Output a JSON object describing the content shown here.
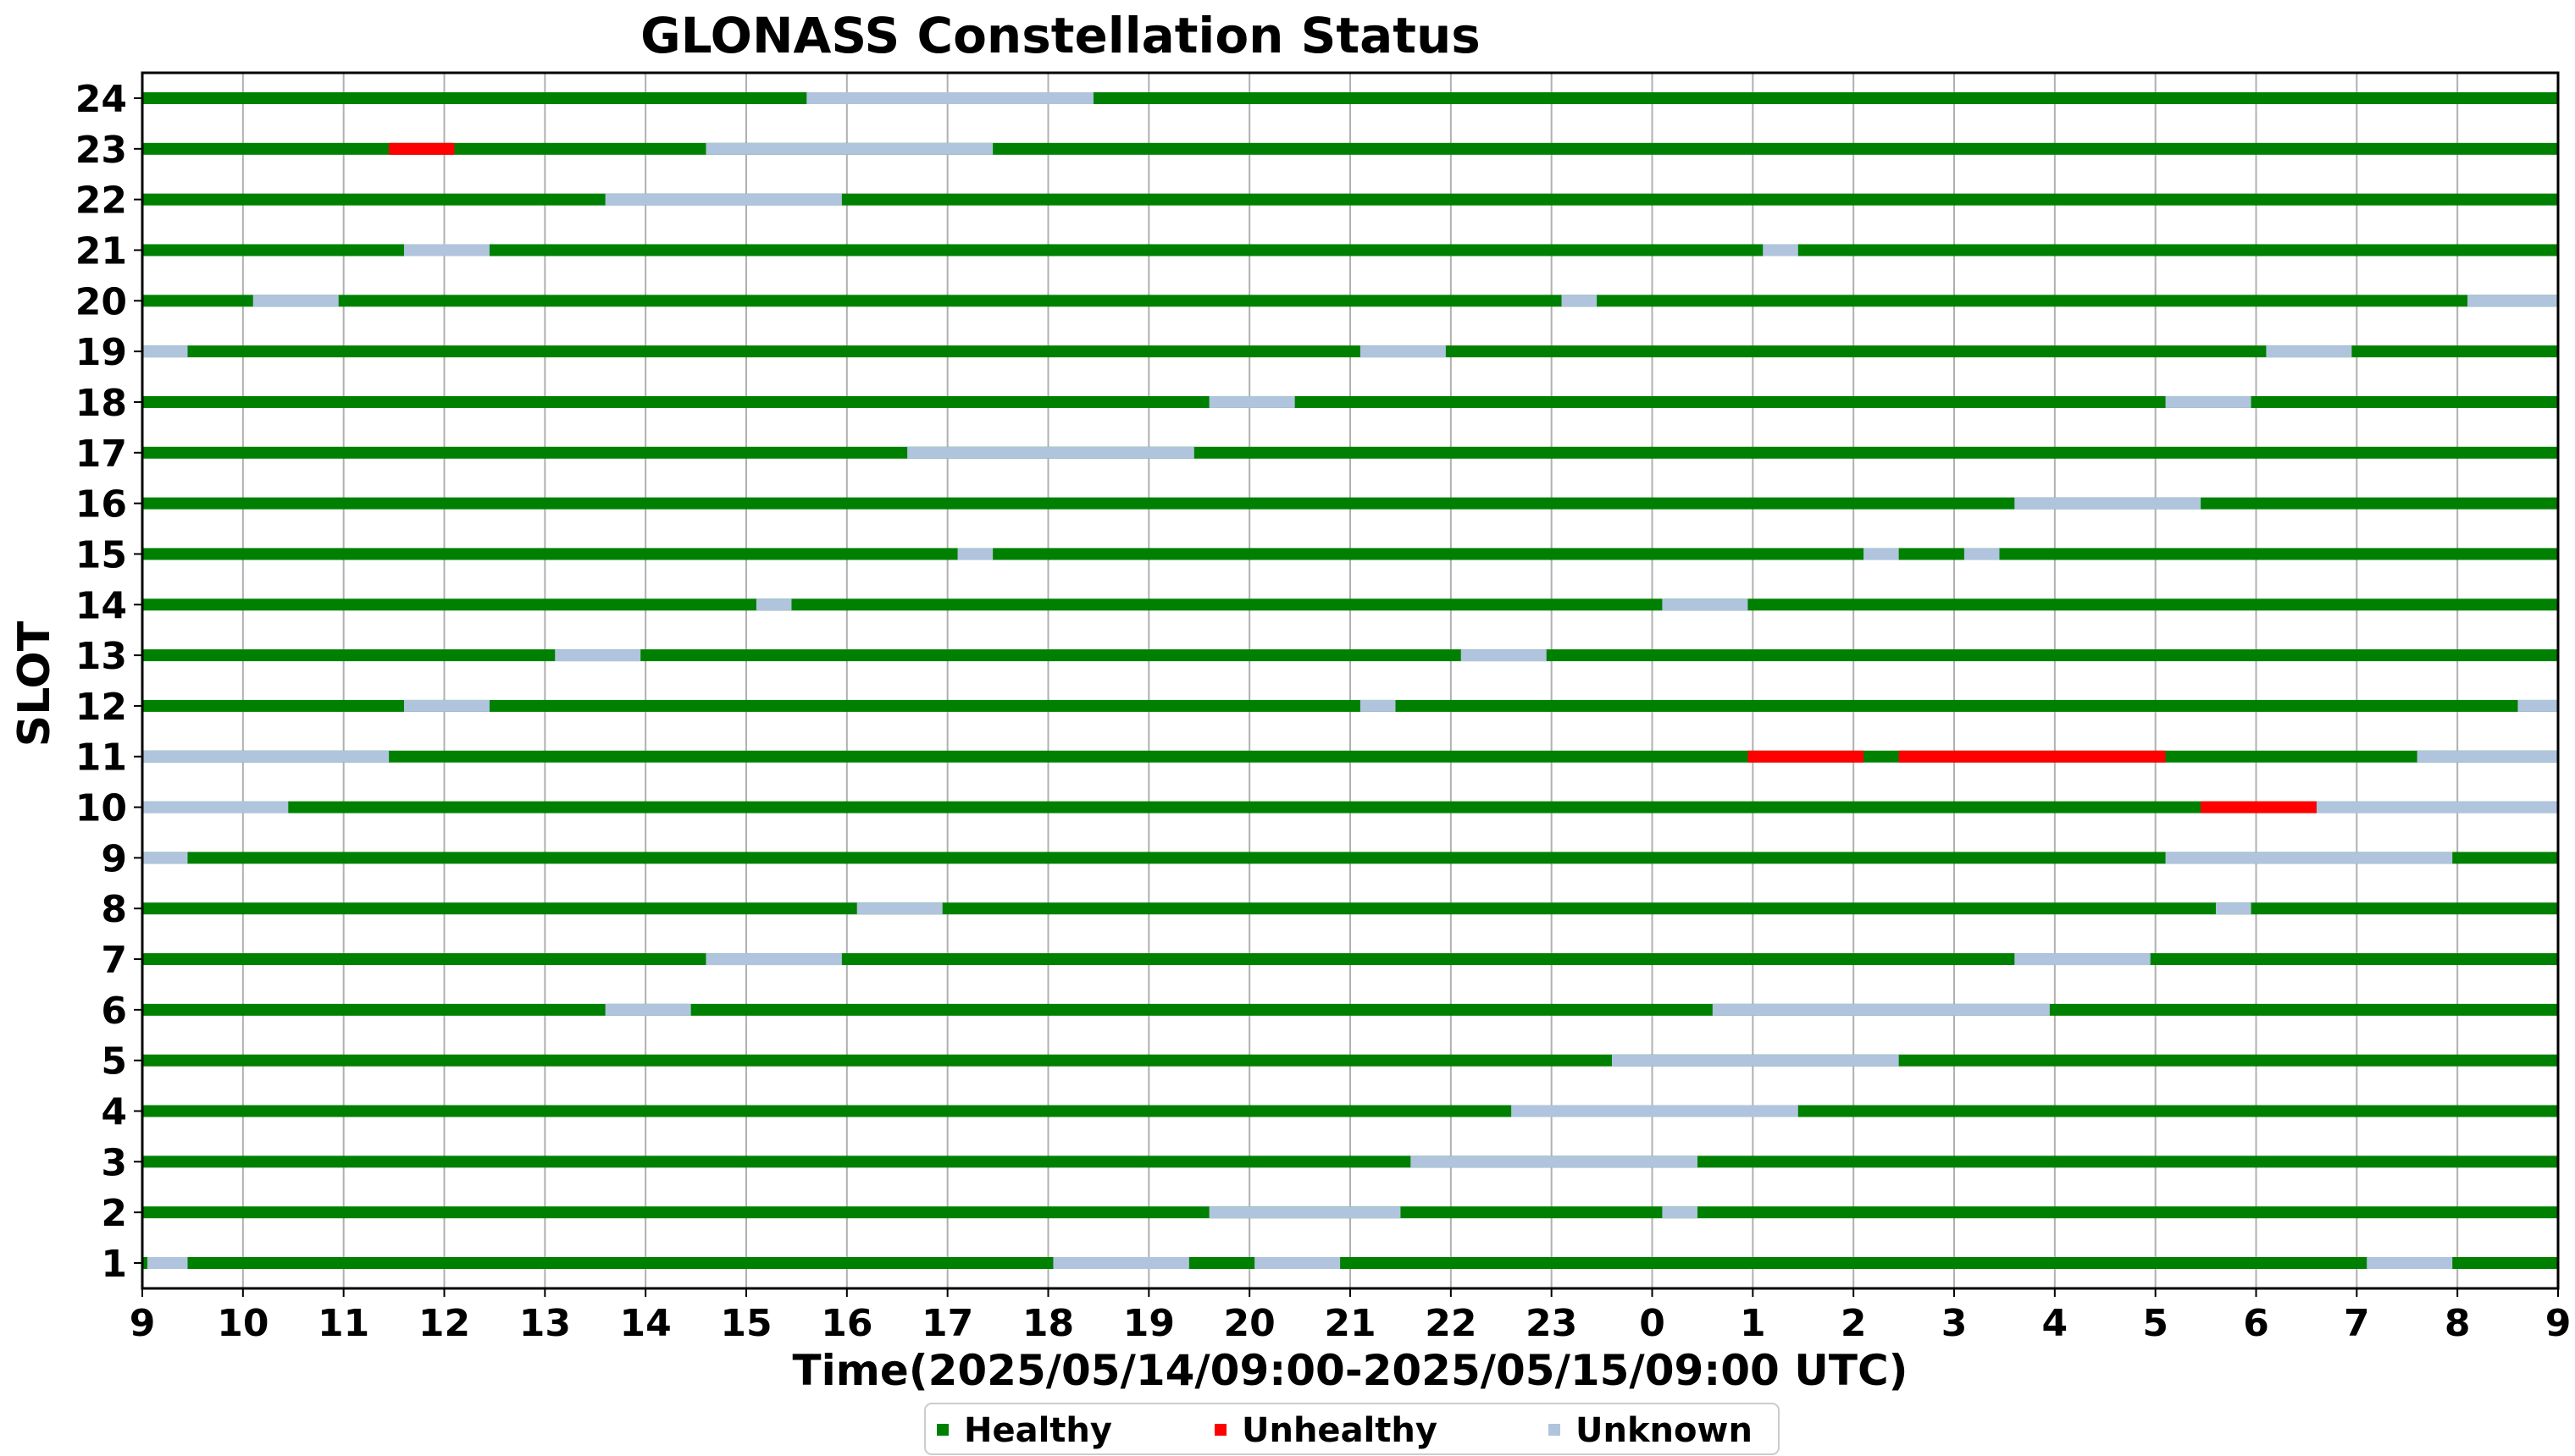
{
  "chart_data": {
    "type": "timeline",
    "title": "GLONASS Constellation Status",
    "xlabel": "Time(2025/05/14/09:00-2025/05/15/09:00 UTC)",
    "ylabel": "SLOT",
    "x_tick_labels": [
      "9",
      "10",
      "11",
      "12",
      "13",
      "14",
      "15",
      "16",
      "17",
      "18",
      "19",
      "20",
      "21",
      "22",
      "23",
      "0",
      "1",
      "2",
      "3",
      "4",
      "5",
      "6",
      "7",
      "8",
      "9"
    ],
    "y_categories": [
      "1",
      "2",
      "3",
      "4",
      "5",
      "6",
      "7",
      "8",
      "9",
      "10",
      "11",
      "12",
      "13",
      "14",
      "15",
      "16",
      "17",
      "18",
      "19",
      "20",
      "21",
      "22",
      "23",
      "24"
    ],
    "x_range_hours": [
      0,
      24
    ],
    "grid": "x",
    "legend_position": "bottom-center",
    "status_colors": {
      "Healthy": "#008000",
      "Unhealthy": "#ff0000",
      "Unknown": "#b0c4de"
    },
    "legend": [
      {
        "label": "Healthy",
        "status": "Healthy"
      },
      {
        "label": "Unhealthy",
        "status": "Unhealthy"
      },
      {
        "label": "Unknown",
        "status": "Unknown"
      }
    ],
    "slots": [
      {
        "slot": "1",
        "unknown": [
          [
            0.05,
            0.45
          ],
          [
            9.05,
            10.4
          ],
          [
            11.05,
            11.9
          ],
          [
            22.1,
            22.95
          ]
        ]
      },
      {
        "slot": "2",
        "unknown": [
          [
            10.6,
            12.5
          ],
          [
            15.1,
            15.45
          ]
        ]
      },
      {
        "slot": "3",
        "unknown": [
          [
            12.6,
            15.45
          ]
        ]
      },
      {
        "slot": "4",
        "unknown": [
          [
            13.6,
            16.45
          ]
        ]
      },
      {
        "slot": "5",
        "unknown": [
          [
            14.6,
            17.45
          ]
        ]
      },
      {
        "slot": "6",
        "unknown": [
          [
            4.6,
            5.45
          ],
          [
            15.6,
            18.95
          ]
        ]
      },
      {
        "slot": "7",
        "unknown": [
          [
            5.6,
            6.95
          ],
          [
            18.6,
            19.95
          ]
        ]
      },
      {
        "slot": "8",
        "unknown": [
          [
            7.1,
            7.95
          ],
          [
            20.6,
            20.95
          ]
        ]
      },
      {
        "slot": "9",
        "unknown": [
          [
            0,
            0.45
          ],
          [
            20.1,
            22.95
          ]
        ]
      },
      {
        "slot": "10",
        "unknown": [
          [
            0,
            1.45
          ],
          [
            21.6,
            24
          ]
        ],
        "unhealthy": [
          [
            20.45,
            21.6
          ]
        ]
      },
      {
        "slot": "11",
        "unknown": [
          [
            0,
            2.45
          ],
          [
            22.6,
            24
          ]
        ],
        "unhealthy": [
          [
            15.95,
            17.1
          ],
          [
            17.45,
            20.1
          ]
        ]
      },
      {
        "slot": "12",
        "unknown": [
          [
            2.6,
            3.45
          ],
          [
            12.1,
            12.45
          ],
          [
            23.6,
            24
          ]
        ]
      },
      {
        "slot": "13",
        "unknown": [
          [
            4.1,
            4.95
          ],
          [
            13.1,
            13.95
          ]
        ]
      },
      {
        "slot": "14",
        "unknown": [
          [
            6.1,
            6.45
          ],
          [
            15.1,
            15.95
          ]
        ]
      },
      {
        "slot": "15",
        "unknown": [
          [
            8.1,
            8.45
          ],
          [
            17.1,
            17.45
          ],
          [
            18.1,
            18.45
          ]
        ]
      },
      {
        "slot": "16",
        "unknown": [
          [
            18.6,
            20.45
          ]
        ]
      },
      {
        "slot": "17",
        "unknown": [
          [
            7.6,
            10.45
          ]
        ]
      },
      {
        "slot": "18",
        "unknown": [
          [
            10.6,
            11.45
          ],
          [
            20.1,
            20.95
          ]
        ]
      },
      {
        "slot": "19",
        "unknown": [
          [
            0,
            0.45
          ],
          [
            12.1,
            12.95
          ],
          [
            21.1,
            21.95
          ]
        ]
      },
      {
        "slot": "20",
        "unknown": [
          [
            1.1,
            1.95
          ],
          [
            14.1,
            14.45
          ],
          [
            23.1,
            24
          ]
        ]
      },
      {
        "slot": "21",
        "unknown": [
          [
            2.6,
            3.45
          ],
          [
            16.1,
            16.45
          ]
        ]
      },
      {
        "slot": "22",
        "unknown": [
          [
            4.6,
            6.95
          ]
        ]
      },
      {
        "slot": "23",
        "unknown": [
          [
            5.6,
            8.45
          ]
        ],
        "unhealthy": [
          [
            2.45,
            3.1
          ]
        ]
      },
      {
        "slot": "24",
        "unknown": [
          [
            6.6,
            9.45
          ]
        ]
      }
    ]
  }
}
